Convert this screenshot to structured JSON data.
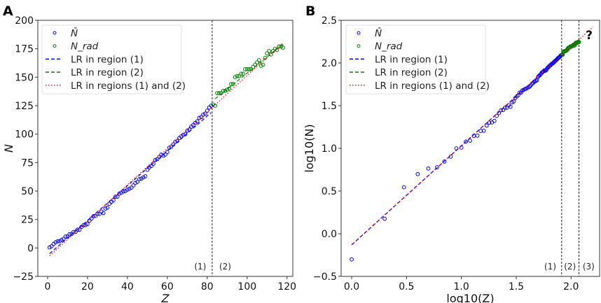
{
  "chart_data": [
    {
      "panel_label": "A",
      "type": "scatter",
      "xlabel": "Z",
      "ylabel": "N",
      "xlim": [
        -4.9,
        122.9
      ],
      "ylim": [
        -25,
        200
      ],
      "xticks": [
        "0",
        "20",
        "40",
        "60",
        "80",
        "100",
        "120"
      ],
      "yticks": [
        "−25",
        "0",
        "25",
        "50",
        "75",
        "100",
        "125",
        "150",
        "175",
        "200"
      ],
      "grid": false,
      "legend_position": "top-left",
      "series": [
        {
          "name": "N̄",
          "kind": "scatter",
          "color": "#0000ff",
          "x": [
            1,
            2,
            3,
            4,
            5,
            6,
            7,
            8,
            9,
            10,
            11,
            12,
            13,
            14,
            15,
            16,
            17,
            18,
            19,
            20,
            21,
            22,
            23,
            24,
            25,
            26,
            27,
            28,
            29,
            30,
            31,
            32,
            33,
            34,
            35,
            36,
            37,
            38,
            39,
            40,
            41,
            42,
            43,
            44,
            45,
            46,
            47,
            48,
            49,
            50,
            51,
            52,
            53,
            54,
            55,
            56,
            57,
            58,
            59,
            60,
            61,
            62,
            63,
            64,
            65,
            66,
            67,
            68,
            69,
            70,
            71,
            72,
            73,
            74,
            75,
            76,
            77,
            78,
            79,
            80,
            81,
            82
          ],
          "y": [
            0.5,
            1.5,
            3.5,
            5,
            5.8,
            6,
            7,
            8,
            10,
            10.2,
            12,
            12.3,
            14,
            14.1,
            16,
            16.1,
            18.5,
            20,
            20.1,
            21,
            24,
            25.9,
            28,
            28.1,
            30,
            29.9,
            32,
            30.7,
            34.6,
            35.4,
            38.8,
            40.6,
            42,
            45,
            45,
            47.8,
            48.5,
            49.6,
            50,
            51.2,
            52,
            53,
            55,
            57.1,
            58,
            60.4,
            60.9,
            62,
            63,
            68.7,
            70.8,
            72,
            74,
            77.3,
            78,
            80,
            82,
            81,
            82,
            84.2,
            88,
            89,
            91,
            93.3,
            94,
            96.5,
            98,
            99.3,
            100,
            103,
            104,
            106.5,
            108,
            109.8,
            111.2,
            114.2,
            115,
            117.1,
            118,
            120.6,
            123.4,
            125
          ]
        },
        {
          "name": "N_rad",
          "kind": "scatter",
          "color": "#008000",
          "x": [
            83,
            84,
            85,
            86,
            87,
            88,
            89,
            90,
            91,
            92,
            93,
            94,
            95,
            96,
            97,
            98,
            99,
            100,
            101,
            102,
            103,
            104,
            105,
            106,
            107,
            108,
            109,
            110,
            111,
            112,
            113,
            114,
            115,
            116,
            117,
            118
          ],
          "y": [
            126,
            125,
            136,
            136,
            136,
            138,
            138,
            139,
            140,
            144,
            144,
            150,
            151,
            151,
            153,
            153,
            157,
            157,
            157,
            157,
            159,
            161,
            163,
            165,
            160,
            161,
            167,
            171,
            173,
            170,
            173,
            175,
            174,
            177,
            177,
            176
          ]
        },
        {
          "name": "LR in region (1)",
          "kind": "line",
          "style": "dashed",
          "color": "#0000ff",
          "slope": 1.53,
          "intercept": -6.5,
          "x_range": [
            1,
            82
          ]
        },
        {
          "name": "LR in region (2)",
          "kind": "line",
          "style": "dashed",
          "color": "#008000",
          "slope": 1.41,
          "intercept": 12.6,
          "x_range": [
            84,
            118
          ]
        },
        {
          "name": "LR in regions (1) and (2)",
          "kind": "line",
          "style": "dotted",
          "color": "#ff0000",
          "slope": 1.6,
          "intercept": -8.6,
          "x_range": [
            1,
            118
          ]
        }
      ],
      "vlines": [
        82.5
      ],
      "region_labels": [
        "(1)",
        "(2)"
      ]
    },
    {
      "panel_label": "B",
      "type": "scatter",
      "xlabel": "log10(Z)",
      "ylabel": "log10(N)",
      "xscale": "log10 of panel A values",
      "xlim": [
        -0.096,
        2.26
      ],
      "ylim": [
        -0.5,
        2.5
      ],
      "xticks": [
        "0.0",
        "0.5",
        "1.0",
        "1.5",
        "2.0"
      ],
      "yticks": [
        "−0.5",
        "0.0",
        "0.5",
        "1.0",
        "1.5",
        "2.0",
        "2.5"
      ],
      "grid": false,
      "legend_position": "top-left",
      "series": [
        {
          "name": "N̄",
          "kind": "scatter",
          "color": "#0000ff"
        },
        {
          "name": "N_rad",
          "kind": "scatter",
          "color": "#008000"
        },
        {
          "name": "LR in region (1)",
          "kind": "line",
          "style": "dashed",
          "color": "#0000ff",
          "slope": 1.16,
          "intercept": -0.13,
          "x_range": [
            0,
            1.914
          ]
        },
        {
          "name": "LR in region (2)",
          "kind": "line",
          "style": "dashed",
          "color": "#008000",
          "slope": 0.94,
          "intercept": 0.29,
          "x_range": [
            1.92,
            2.072
          ]
        },
        {
          "name": "LR in regions (1) and (2)",
          "kind": "line",
          "style": "dotted",
          "color": "#ff0000",
          "slope": 1.16,
          "intercept": -0.13,
          "x_range": [
            0,
            2.2
          ]
        }
      ],
      "vlines": [
        1.914,
        2.072
      ],
      "region_labels": [
        "(1)",
        "(2)",
        "(3)"
      ],
      "annotation": "?"
    }
  ]
}
